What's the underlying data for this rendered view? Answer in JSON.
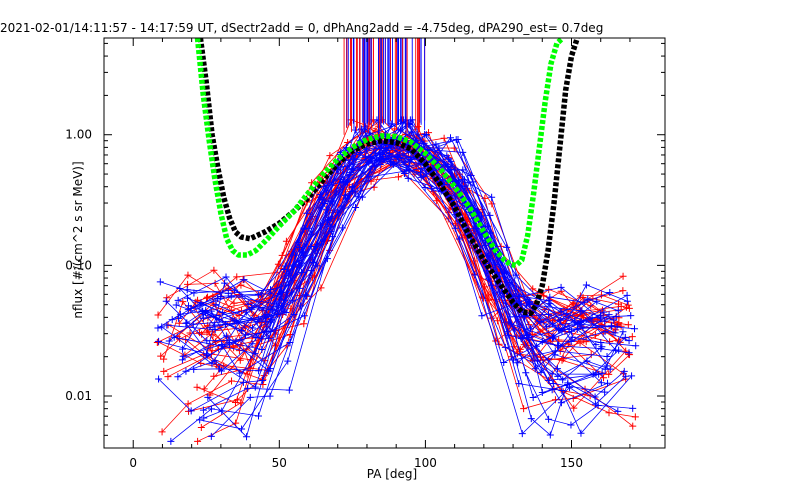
{
  "chart_data": {
    "type": "line",
    "title": "2021-02-01/14:11:57 - 14:17:59 UT, dSectr2add = 0, dPhAng2add = -4.75deg, dPA290_est=   0.7deg",
    "xlabel": "PA [deg]",
    "ylabel": "nflux [#/(cm^2 s sr MeV)]",
    "xlim": [
      -10,
      182
    ],
    "ylim": [
      0.004,
      5.5
    ],
    "yscale": "log",
    "xticks": [
      "0",
      "50",
      "100",
      "150"
    ],
    "yticks": [
      "0.01",
      "0.10",
      "1.00"
    ],
    "xtick_values": [
      0,
      50,
      100,
      150
    ],
    "ytick_values": [
      0.01,
      0.1,
      1.0
    ],
    "grid": false,
    "colors": {
      "red": "#ff0000",
      "blue": "#0000ff",
      "green": "#00ff00",
      "black": "#000000"
    },
    "series": [
      {
        "color": "black",
        "style": "thick-dashed",
        "x": [
          23,
          25,
          27,
          29,
          31,
          33,
          35,
          37,
          40,
          45,
          50,
          55,
          60,
          65,
          70,
          75,
          80,
          85,
          90,
          95,
          100,
          105,
          110,
          115,
          120,
          125,
          130,
          133,
          136,
          138,
          140,
          142,
          144,
          146,
          148,
          150,
          152
        ],
        "y": [
          5.5,
          2.5,
          1.0,
          0.55,
          0.33,
          0.23,
          0.18,
          0.165,
          0.16,
          0.18,
          0.21,
          0.26,
          0.33,
          0.45,
          0.6,
          0.75,
          0.85,
          0.9,
          0.87,
          0.78,
          0.6,
          0.42,
          0.28,
          0.17,
          0.11,
          0.075,
          0.052,
          0.044,
          0.043,
          0.05,
          0.07,
          0.13,
          0.3,
          0.8,
          2.2,
          4.0,
          5.5
        ]
      },
      {
        "color": "green",
        "style": "thick-dashed",
        "x": [
          22,
          24,
          26,
          28,
          30,
          32,
          34,
          36,
          39,
          42,
          46,
          50,
          55,
          60,
          65,
          70,
          75,
          80,
          85,
          90,
          95,
          100,
          105,
          110,
          115,
          120,
          124,
          127,
          129,
          131,
          133,
          135,
          137,
          139,
          141,
          143,
          145,
          147
        ],
        "y": [
          5.5,
          2.0,
          0.9,
          0.45,
          0.25,
          0.16,
          0.13,
          0.12,
          0.12,
          0.13,
          0.16,
          0.2,
          0.26,
          0.36,
          0.5,
          0.65,
          0.8,
          0.92,
          0.98,
          0.97,
          0.88,
          0.72,
          0.55,
          0.4,
          0.28,
          0.18,
          0.13,
          0.11,
          0.102,
          0.1,
          0.11,
          0.17,
          0.35,
          0.8,
          1.8,
          3.5,
          5.0,
          5.5
        ]
      }
    ]
  }
}
